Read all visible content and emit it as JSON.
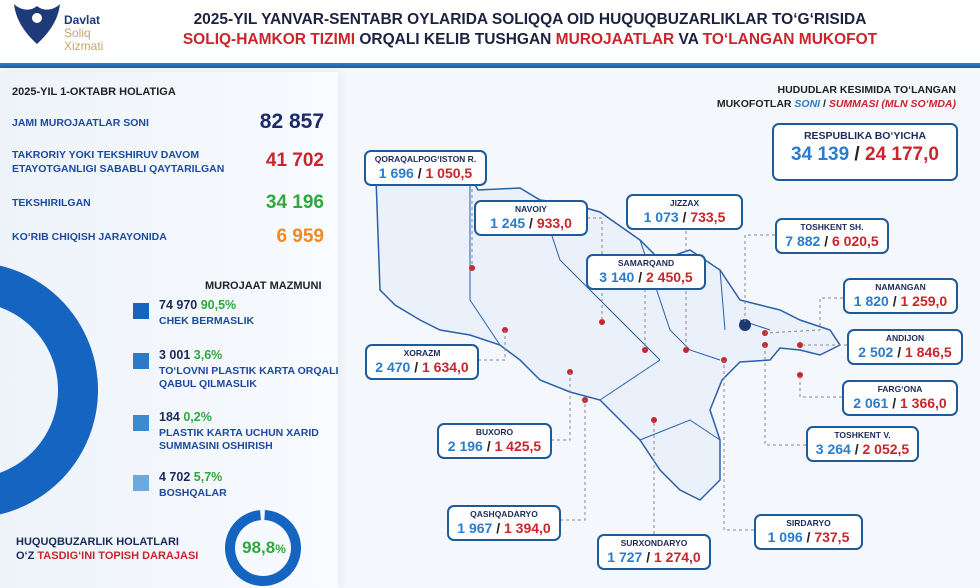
{
  "header": {
    "logo": {
      "line1": "Davlat",
      "line2": "Soliq",
      "line3": "Xizmati"
    },
    "title_line1": "2025-YIL YANVAR-SENTABR OYLARIDA SOLIQQA OID HUQUQBUZARLIKLAR TO‘G‘RISIDA",
    "title_line2_a": "SOLIQ-HAMKOR TIZIMI",
    "title_line2_b": " ORQALI KELIB TUSHGAN ",
    "title_line2_c": "MUROJAATLAR",
    "title_line2_d": " VA ",
    "title_line2_e": "TO‘LANGAN MUKOFOT"
  },
  "stats": {
    "heading": "2025-YIL 1-OKTABR HOLATIGA",
    "items": [
      {
        "label": "JAMI MUROJAATLAR SONI",
        "value": "82 857",
        "color": "#1c2a6a"
      },
      {
        "label": "TAKRORIY YOKI TEKSHIRUV DAVOM ETAYOTGANLIGI SABABLI QAYTARILGAN",
        "value": "41 702",
        "color": "#c8262c"
      },
      {
        "label": "TEKSHIRILGAN",
        "value": "34 196",
        "color": "#2fa83c"
      },
      {
        "label": "KO‘RIB CHIQISH JARAYONIDA",
        "value": "6 959",
        "color": "#f08a24"
      }
    ]
  },
  "content": {
    "heading": "MUROJAAT MAZMUNI",
    "items": [
      {
        "count": "74 970",
        "percent": "90,5%",
        "label": "CHEK BERMASLIK",
        "color": "#1565c0"
      },
      {
        "count": "3 001",
        "percent": "3,6%",
        "label": "TO‘LOVNI PLASTIK KARTA ORQALI QABUL QILMASLIK",
        "color": "#2a7ac8"
      },
      {
        "count": "184",
        "percent": "0,2%",
        "label": "PLASTIK KARTA UCHUN XARID SUMMASINI OSHIRISH",
        "color": "#3c8ad0"
      },
      {
        "count": "4 702",
        "percent": "5,7%",
        "label": "BOSHQALAR",
        "color": "#6ea8de"
      }
    ]
  },
  "confirm": {
    "line1": "HUQUQBUZARLIK HOLATLARI",
    "line2_a": "O‘Z ",
    "line2_b": "TASDIG‘INI TOPISH DARAJASI",
    "value": "98,8",
    "unit": "%",
    "fraction": 0.988
  },
  "regions_header": {
    "line1": "HUDUDLAR KESIMIDA TO‘LANGAN",
    "line2_a": "MUKOFOTLAR ",
    "line2_b": "SONI",
    "line2_c": " / ",
    "line2_d": "SUMMASI (MLN SO‘MDA)"
  },
  "republic": {
    "label": "RESPUBLIKA BO‘YICHA",
    "count": "34 139",
    "sum": "24 177,0"
  },
  "regions": [
    {
      "name": "QORAQALPOG‘ISTON R.",
      "count": "1 696",
      "sum": "1 050,5"
    },
    {
      "name": "NAVOIY",
      "count": "1 245",
      "sum": "933,0"
    },
    {
      "name": "JIZZAX",
      "count": "1 073",
      "sum": "733,5"
    },
    {
      "name": "TOSHKENT SH.",
      "count": "7 882",
      "sum": "6 020,5"
    },
    {
      "name": "SAMARQAND",
      "count": "3 140",
      "sum": "2 450,5"
    },
    {
      "name": "NAMANGAN",
      "count": "1 820",
      "sum": "1 259,0"
    },
    {
      "name": "ANDIJON",
      "count": "2 502",
      "sum": "1 846,5"
    },
    {
      "name": "XORAZM",
      "count": "2 470",
      "sum": "1 634,0"
    },
    {
      "name": "FARG‘ONA",
      "count": "2 061",
      "sum": "1 366,0"
    },
    {
      "name": "BUXORO",
      "count": "2 196",
      "sum": "1 425,5"
    },
    {
      "name": "TOSHKENT V.",
      "count": "3 264",
      "sum": "2 052,5"
    },
    {
      "name": "QASHQADARYO",
      "count": "1 967",
      "sum": "1 394,0"
    },
    {
      "name": "SIRDARYO",
      "count": "1 096",
      "sum": "737,5"
    },
    {
      "name": "SURXONDARYO",
      "count": "1 727",
      "sum": "1 274,0"
    }
  ]
}
